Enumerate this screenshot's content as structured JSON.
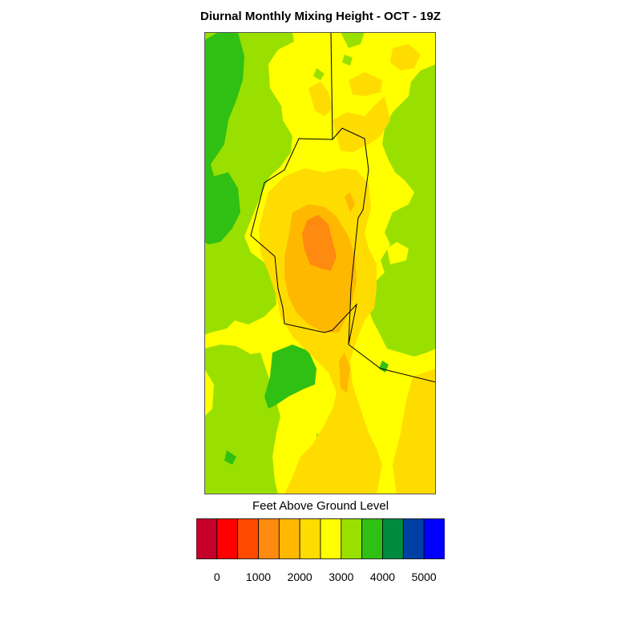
{
  "title": "Diurnal Monthly Mixing Height - OCT - 19Z",
  "colorbar": {
    "label": "Feet Above Ground Level",
    "colors": [
      "#c4002b",
      "#ff0000",
      "#ff4a00",
      "#ff8a10",
      "#ffb800",
      "#ffdc00",
      "#ffff00",
      "#99e000",
      "#30c014",
      "#008a40",
      "#0040a4",
      "#0000ff"
    ],
    "tick_labels": [
      "0",
      "1000",
      "2000",
      "3000",
      "4000",
      "5000"
    ]
  },
  "map_colors": {
    "dark_green": "#30c014",
    "light_green": "#99e000",
    "yellow": "#ffff00",
    "gold": "#ffdc00",
    "orange_yellow": "#ffb800",
    "orange": "#ff8a10",
    "boundary": "#000000"
  }
}
